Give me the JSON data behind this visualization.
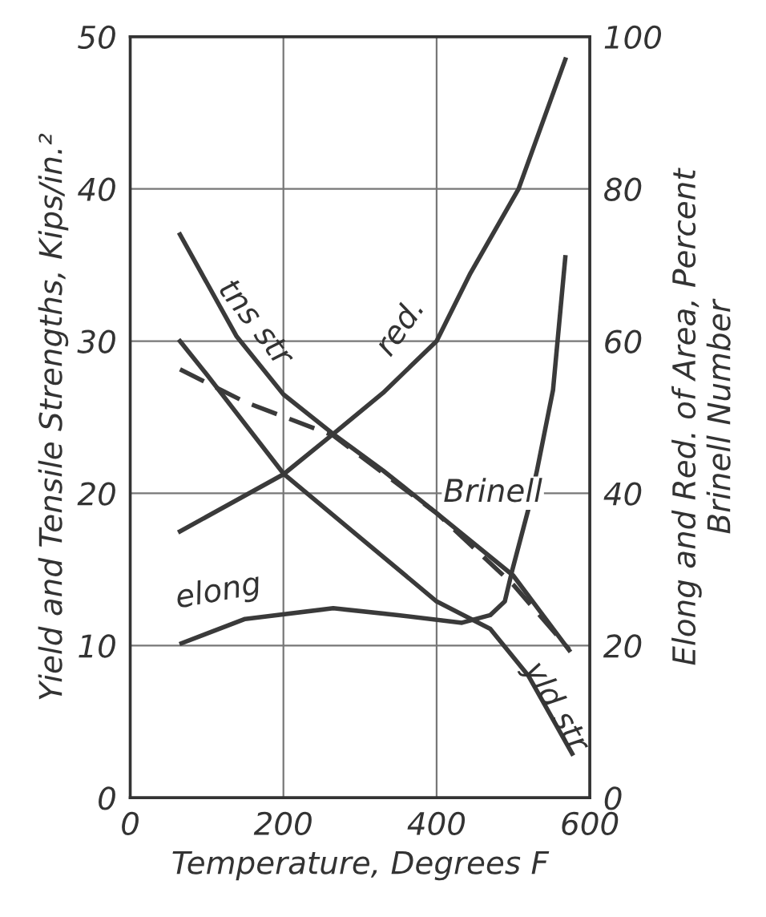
{
  "chart_data": {
    "type": "line",
    "xlabel": "Temperature, Degrees F",
    "ylabel": "Yield and Tensile Strengths, Kips/in.²",
    "y2label": "Elong and Red. of Area, Percent\nBrinell Number",
    "xlim": [
      0,
      600
    ],
    "xticks": [
      0,
      200,
      400,
      600
    ],
    "ylim": [
      0,
      50
    ],
    "yticks": [
      0,
      10,
      20,
      30,
      40,
      50
    ],
    "y2lim": [
      0,
      100
    ],
    "y2ticks": [
      0,
      20,
      40,
      60,
      80,
      100
    ],
    "grid": true,
    "marker": "none",
    "series": [
      {
        "name": "tns str",
        "color": "#3a3a3a",
        "line_style": "solid",
        "x": [
          65,
          139,
          200,
          265,
          330,
          400,
          500,
          573
        ],
        "values": [
          37,
          30.3,
          26.5,
          23.9,
          21.5,
          18.7,
          14.6,
          9.7
        ]
      },
      {
        "name": "yld str",
        "color": "#3a3a3a",
        "line_style": "solid",
        "x": [
          65,
          100,
          200,
          300,
          400,
          470,
          520,
          577
        ],
        "values": [
          30,
          27.8,
          21.3,
          17.1,
          12.9,
          11.1,
          8,
          2.9
        ]
      },
      {
        "name": "red.",
        "color": "#3a3a3a",
        "line_style": "solid",
        "axis": "y2",
        "x": [
          65,
          200,
          265,
          330,
          400,
          444,
          507,
          568
        ],
        "values": [
          35,
          42.5,
          47.8,
          53.2,
          60,
          68.9,
          80,
          97
        ]
      },
      {
        "name": "elong",
        "color": "#3a3a3a",
        "line_style": "solid",
        "axis": "y2",
        "x": [
          67,
          150,
          265,
          350,
          433,
          470,
          489,
          499,
          520,
          531,
          552,
          568
        ],
        "values": [
          20.3,
          23.5,
          24.9,
          24,
          23,
          24,
          25.8,
          30,
          38,
          43,
          53.6,
          71
        ]
      },
      {
        "name": "Brinell",
        "color": "#3a3a3a",
        "line_style": "dashed",
        "axis": "y2",
        "x": [
          65,
          150,
          265,
          400,
          500,
          573
        ],
        "values": [
          56.3,
          52,
          47.6,
          37.4,
          28,
          19.5
        ]
      }
    ]
  }
}
